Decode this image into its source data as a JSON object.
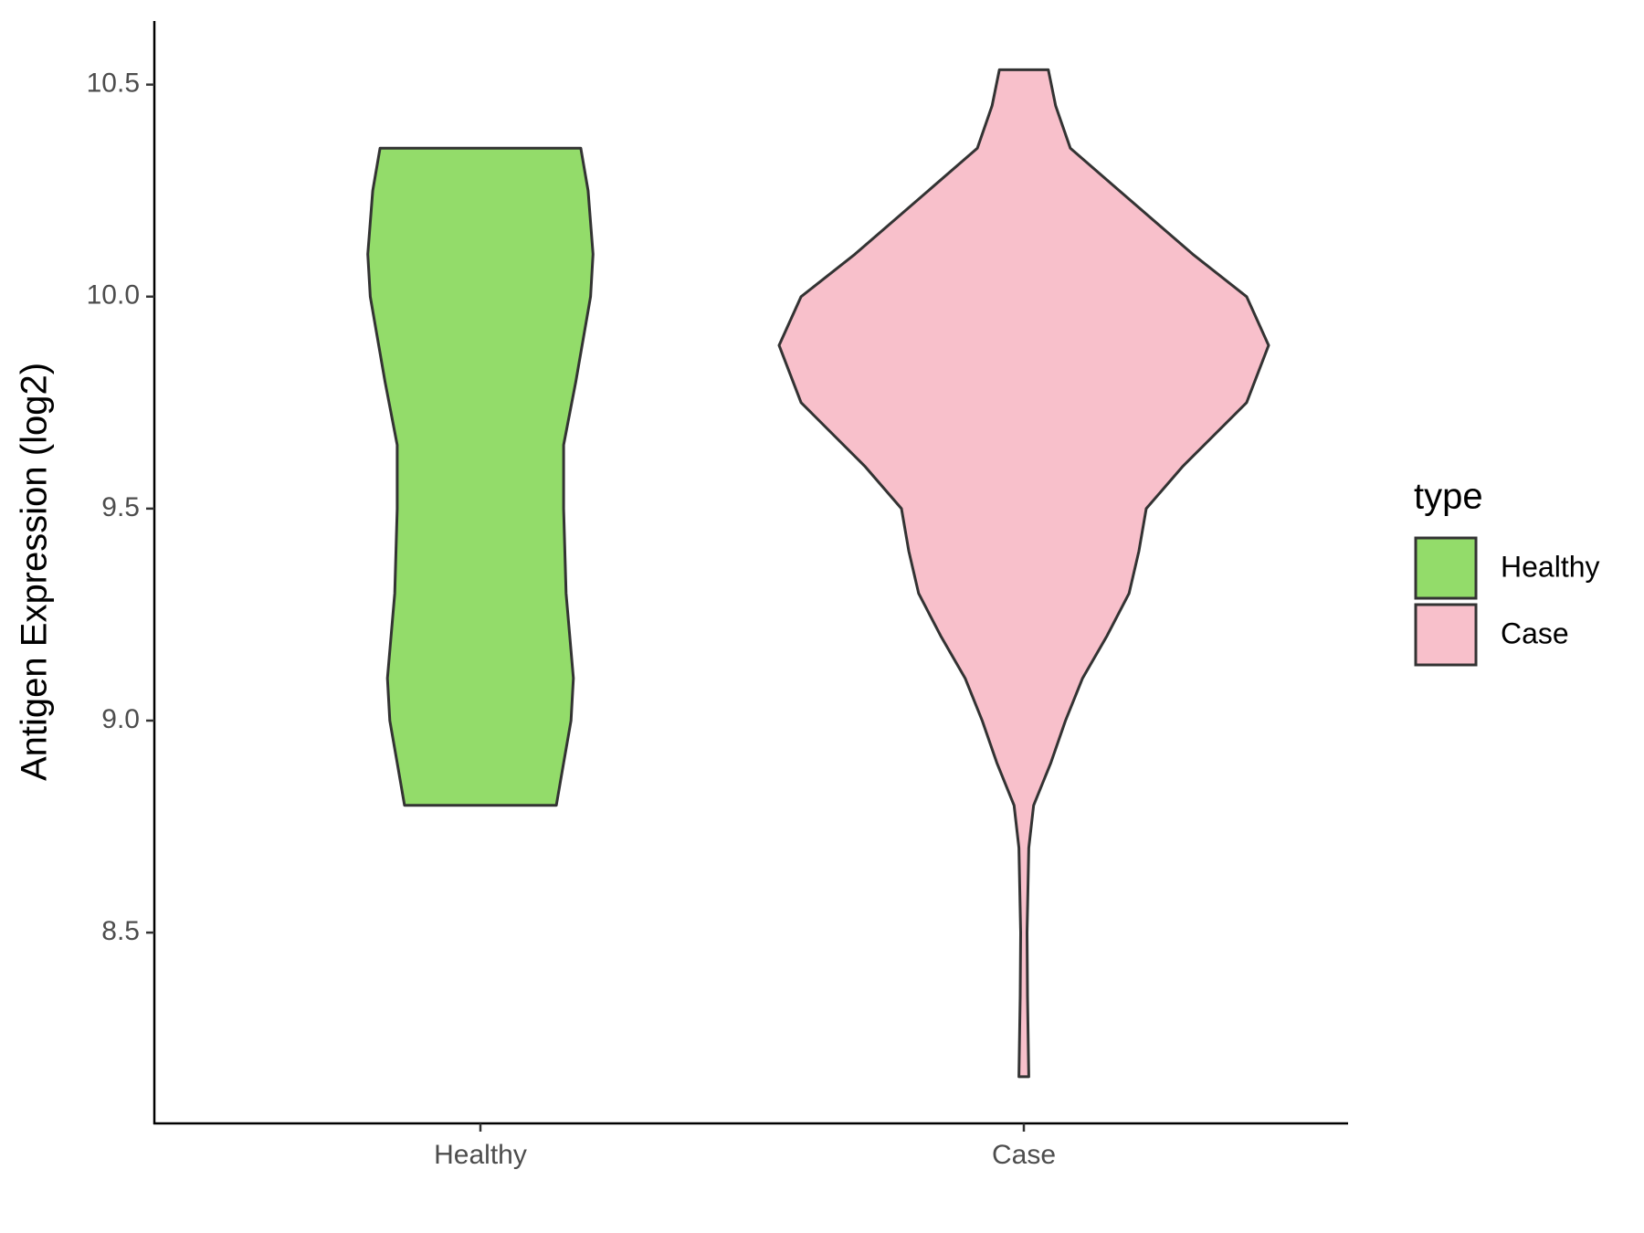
{
  "chart_data": {
    "type": "violin",
    "ylabel": "Antigen Expression (log2)",
    "categories": [
      "Healthy",
      "Case"
    ],
    "ylim": [
      8.05,
      10.65
    ],
    "yticks": [
      8.5,
      {
        "value": 9.0,
        "label": "9.0"
      },
      9.5,
      {
        "value": 10.0,
        "label": "10.0"
      },
      10.5
    ],
    "legend_title": "type",
    "legend_position": "right",
    "grid": false,
    "series": [
      {
        "name": "Healthy",
        "color": "#93dc6a",
        "y": [
          10.35,
          10.25,
          10.1,
          10.0,
          9.8,
          9.65,
          9.5,
          9.3,
          9.1,
          9.0,
          8.9,
          8.8
        ],
        "density": [
          0.41,
          0.44,
          0.46,
          0.45,
          0.39,
          0.34,
          0.34,
          0.35,
          0.38,
          0.37,
          0.34,
          0.31
        ]
      },
      {
        "name": "Case",
        "color": "#f8c0cb",
        "y": [
          10.535,
          10.45,
          10.35,
          10.25,
          10.1,
          10.0,
          9.885,
          9.75,
          9.6,
          9.5,
          9.4,
          9.3,
          9.2,
          9.1,
          9.0,
          8.9,
          8.8,
          8.7,
          8.5,
          8.35,
          8.16
        ],
        "density": [
          0.1,
          0.13,
          0.19,
          0.39,
          0.69,
          0.91,
          1.0,
          0.91,
          0.65,
          0.5,
          0.47,
          0.43,
          0.34,
          0.24,
          0.17,
          0.11,
          0.04,
          0.02,
          0.013,
          0.015,
          0.02
        ]
      }
    ]
  }
}
